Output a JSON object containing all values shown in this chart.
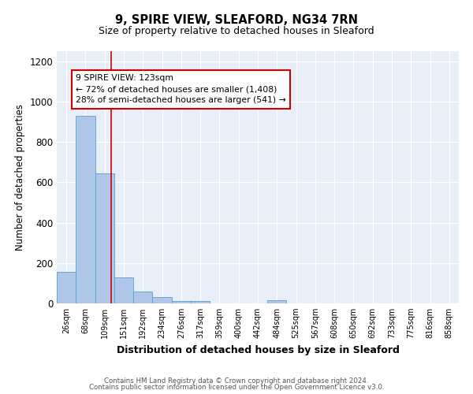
{
  "title": "9, SPIRE VIEW, SLEAFORD, NG34 7RN",
  "subtitle": "Size of property relative to detached houses in Sleaford",
  "xlabel": "Distribution of detached houses by size in Sleaford",
  "ylabel": "Number of detached properties",
  "bin_labels": [
    "26sqm",
    "68sqm",
    "109sqm",
    "151sqm",
    "192sqm",
    "234sqm",
    "276sqm",
    "317sqm",
    "359sqm",
    "400sqm",
    "442sqm",
    "484sqm",
    "525sqm",
    "567sqm",
    "608sqm",
    "650sqm",
    "692sqm",
    "733sqm",
    "775sqm",
    "816sqm",
    "858sqm"
  ],
  "bar_heights": [
    155,
    930,
    645,
    130,
    57,
    30,
    13,
    10,
    0,
    0,
    0,
    14,
    0,
    0,
    0,
    0,
    0,
    0,
    0,
    0,
    0
  ],
  "bar_color": "#aec6e8",
  "bar_edge_color": "#5a9fd4",
  "background_color": "#e8eef7",
  "ylim": [
    0,
    1250
  ],
  "yticks": [
    0,
    200,
    400,
    600,
    800,
    1000,
    1200
  ],
  "red_line_x": 2.33,
  "annotation_text": "9 SPIRE VIEW: 123sqm\n← 72% of detached houses are smaller (1,408)\n28% of semi-detached houses are larger (541) →",
  "annotation_box_color": "#ffffff",
  "annotation_box_edge": "#cc0000",
  "footer_line1": "Contains HM Land Registry data © Crown copyright and database right 2024.",
  "footer_line2": "Contains public sector information licensed under the Open Government Licence v3.0."
}
